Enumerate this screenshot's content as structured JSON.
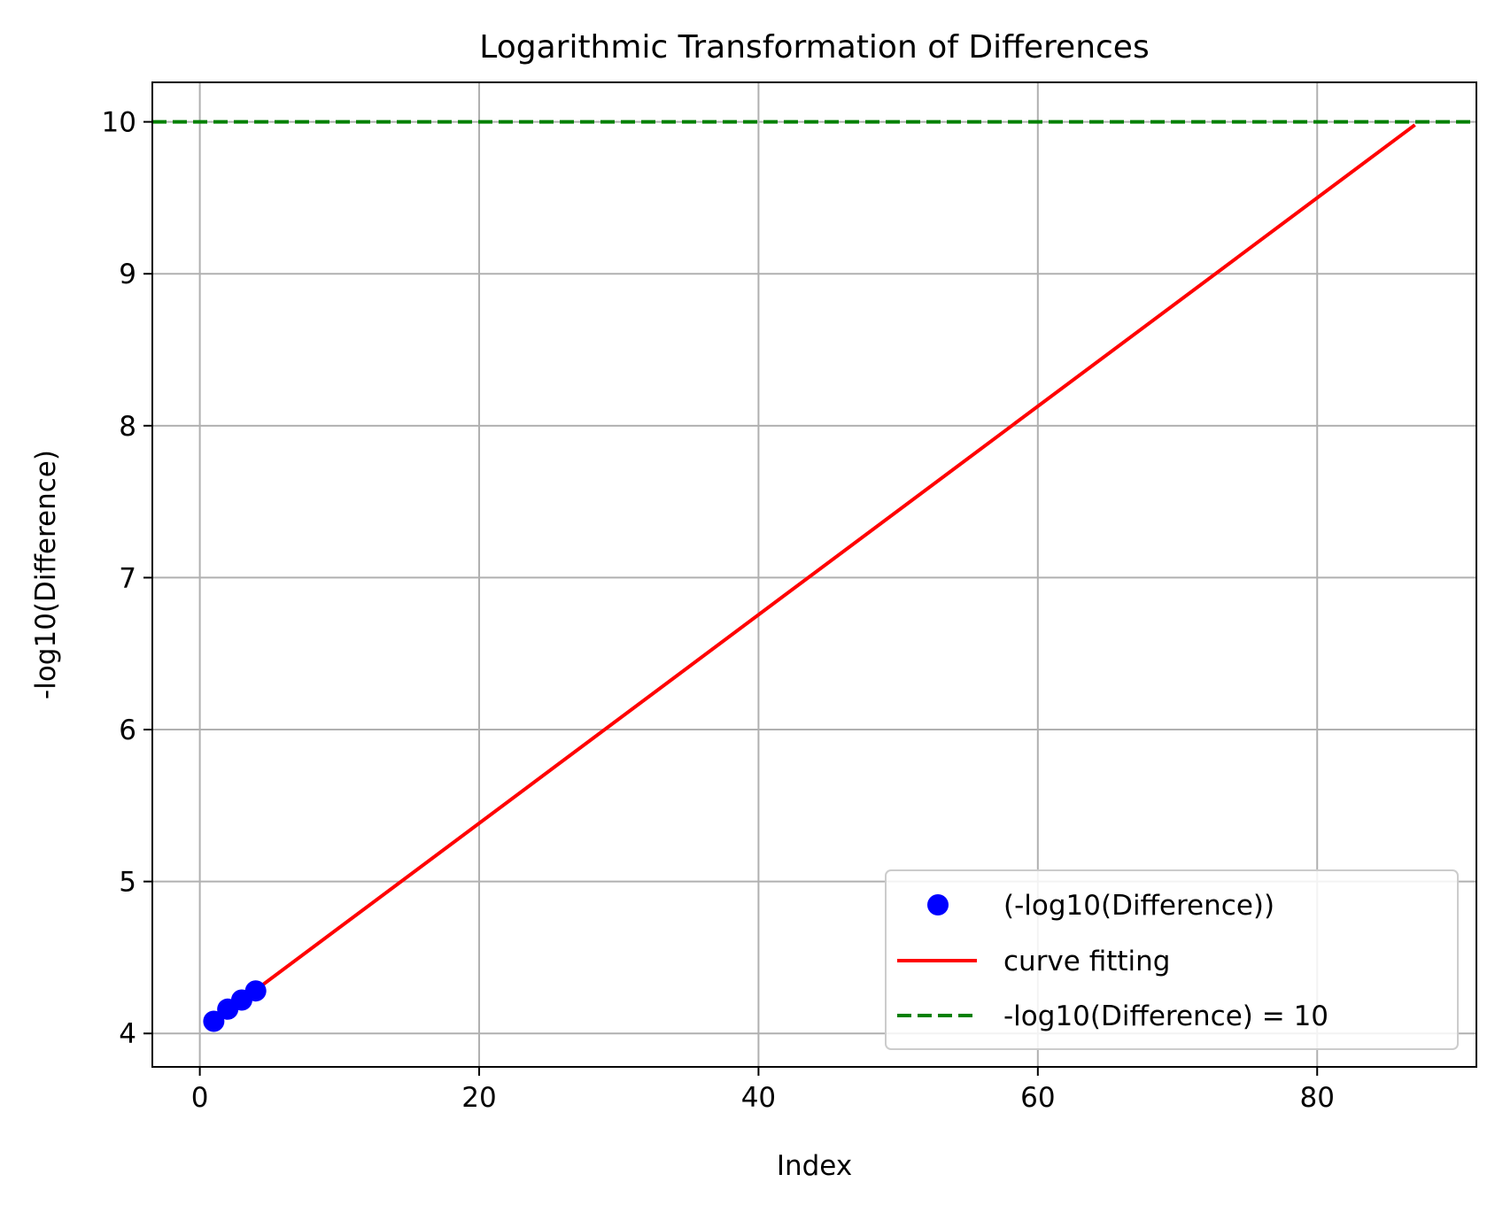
{
  "chart_data": {
    "type": "line",
    "title": "Logarithmic Transformation of Differences",
    "xlabel": "Index",
    "ylabel": "-log10(Difference)",
    "xlim": [
      -3.4,
      91.4
    ],
    "ylim": [
      3.78,
      10.26
    ],
    "xticks": [
      0,
      20,
      40,
      60,
      80
    ],
    "yticks": [
      4,
      5,
      6,
      7,
      8,
      9,
      10
    ],
    "grid": true,
    "legend_position": "lower-right",
    "series": [
      {
        "name": "(-log10(Difference))",
        "kind": "scatter",
        "color": "#0000ff",
        "x": [
          1,
          2,
          3,
          4
        ],
        "y": [
          4.08,
          4.16,
          4.22,
          4.28
        ]
      },
      {
        "name": "curve fitting",
        "kind": "line",
        "color": "#ff0000",
        "x": [
          1,
          87
        ],
        "y": [
          4.08,
          9.98
        ]
      },
      {
        "name": "-log10(Difference) = 10",
        "kind": "hline",
        "color": "#008000",
        "dash": "dashed",
        "y": 10
      }
    ]
  }
}
